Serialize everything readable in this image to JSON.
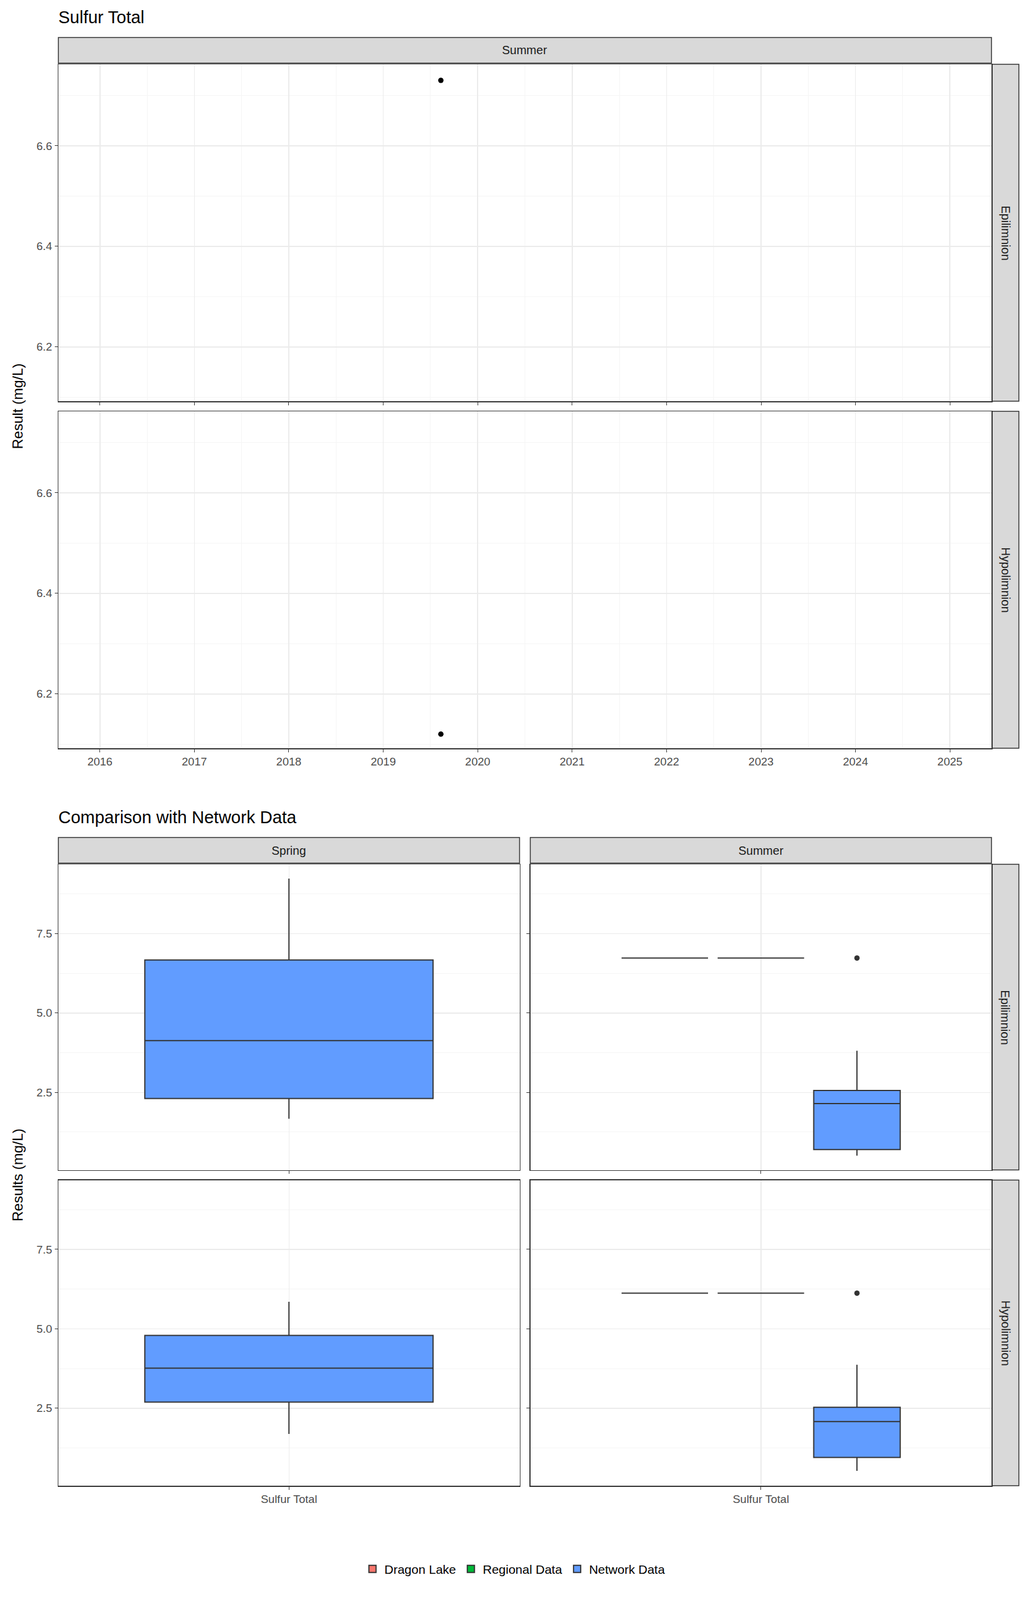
{
  "chart_data": [
    {
      "type": "scatter",
      "title": "Sulfur Total",
      "y_label": "Result (mg/L)",
      "facets": {
        "columns": [
          "Summer"
        ],
        "rows": [
          "Epilimnion",
          "Hypolimnion"
        ]
      },
      "series": [
        {
          "season": "Summer",
          "layer": "Epilimnion",
          "color": "#000000",
          "marker": "circle",
          "x": [
            2019.61
          ],
          "values": [
            6.73
          ]
        },
        {
          "season": "Summer",
          "layer": "Hypolimnion",
          "color": "#000000",
          "marker": "circle",
          "x": [
            2019.61
          ],
          "values": [
            6.12
          ]
        }
      ],
      "xlim": [
        2015.56,
        2025.44
      ],
      "xticks": [
        2016,
        2017,
        2018,
        2019,
        2020,
        2021,
        2022,
        2023,
        2024,
        2025
      ],
      "ylim": [
        6.092,
        6.762
      ],
      "yticks": [
        6.2,
        6.4,
        6.6
      ],
      "grid": true
    },
    {
      "type": "box",
      "title": "Comparison with Network Data",
      "y_label": "Results (mg/L)",
      "categories": [
        "Sulfur Total"
      ],
      "facets": {
        "columns": [
          "Spring",
          "Summer"
        ],
        "rows": [
          "Epilimnion",
          "Hypolimnion"
        ]
      },
      "series": [
        {
          "name": "Dragon Lake",
          "color": "#F8766D"
        },
        {
          "name": "Regional Data",
          "color": "#00BA38"
        },
        {
          "name": "Network Data",
          "color": "#619CFF"
        }
      ],
      "boxes": [
        {
          "season": "Spring",
          "layer": "Epilimnion",
          "group": "Network Data",
          "category": "Sulfur Total",
          "lower": 1.67,
          "q1": 2.31,
          "median": 4.13,
          "q3": 6.67,
          "upper": 9.23,
          "outliers": []
        },
        {
          "season": "Spring",
          "layer": "Hypolimnion",
          "group": "Network Data",
          "category": "Sulfur Total",
          "lower": 1.69,
          "q1": 2.69,
          "median": 3.76,
          "q3": 4.79,
          "upper": 5.85,
          "outliers": []
        },
        {
          "season": "Summer",
          "layer": "Epilimnion",
          "group": "Dragon Lake",
          "category": "Sulfur Total",
          "lower": 6.73,
          "q1": 6.73,
          "median": 6.73,
          "q3": 6.73,
          "upper": 6.73,
          "outliers": []
        },
        {
          "season": "Summer",
          "layer": "Epilimnion",
          "group": "Regional Data",
          "category": "Sulfur Total",
          "lower": 6.73,
          "q1": 6.73,
          "median": 6.73,
          "q3": 6.73,
          "upper": 6.73,
          "outliers": []
        },
        {
          "season": "Summer",
          "layer": "Epilimnion",
          "group": "Network Data",
          "category": "Sulfur Total",
          "lower": 0.51,
          "q1": 0.7,
          "median": 2.15,
          "q3": 2.56,
          "upper": 3.81,
          "outliers": [
            6.73
          ]
        },
        {
          "season": "Summer",
          "layer": "Hypolimnion",
          "group": "Dragon Lake",
          "category": "Sulfur Total",
          "lower": 6.12,
          "q1": 6.12,
          "median": 6.12,
          "q3": 6.12,
          "upper": 6.12,
          "outliers": []
        },
        {
          "season": "Summer",
          "layer": "Hypolimnion",
          "group": "Regional Data",
          "category": "Sulfur Total",
          "lower": 6.12,
          "q1": 6.12,
          "median": 6.12,
          "q3": 6.12,
          "upper": 6.12,
          "outliers": []
        },
        {
          "season": "Summer",
          "layer": "Hypolimnion",
          "group": "Network Data",
          "category": "Sulfur Total",
          "lower": 0.53,
          "q1": 0.95,
          "median": 2.08,
          "q3": 2.53,
          "upper": 3.87,
          "outliers": [
            6.12
          ]
        }
      ],
      "ylim": [
        0.06,
        9.68
      ],
      "yticks": [
        {
          "value": 2.5,
          "label": "2.5"
        },
        {
          "value": 5,
          "label": "5.0"
        },
        {
          "value": 7.5,
          "label": "7.5"
        }
      ],
      "grid": true,
      "legend": "bottom"
    }
  ]
}
